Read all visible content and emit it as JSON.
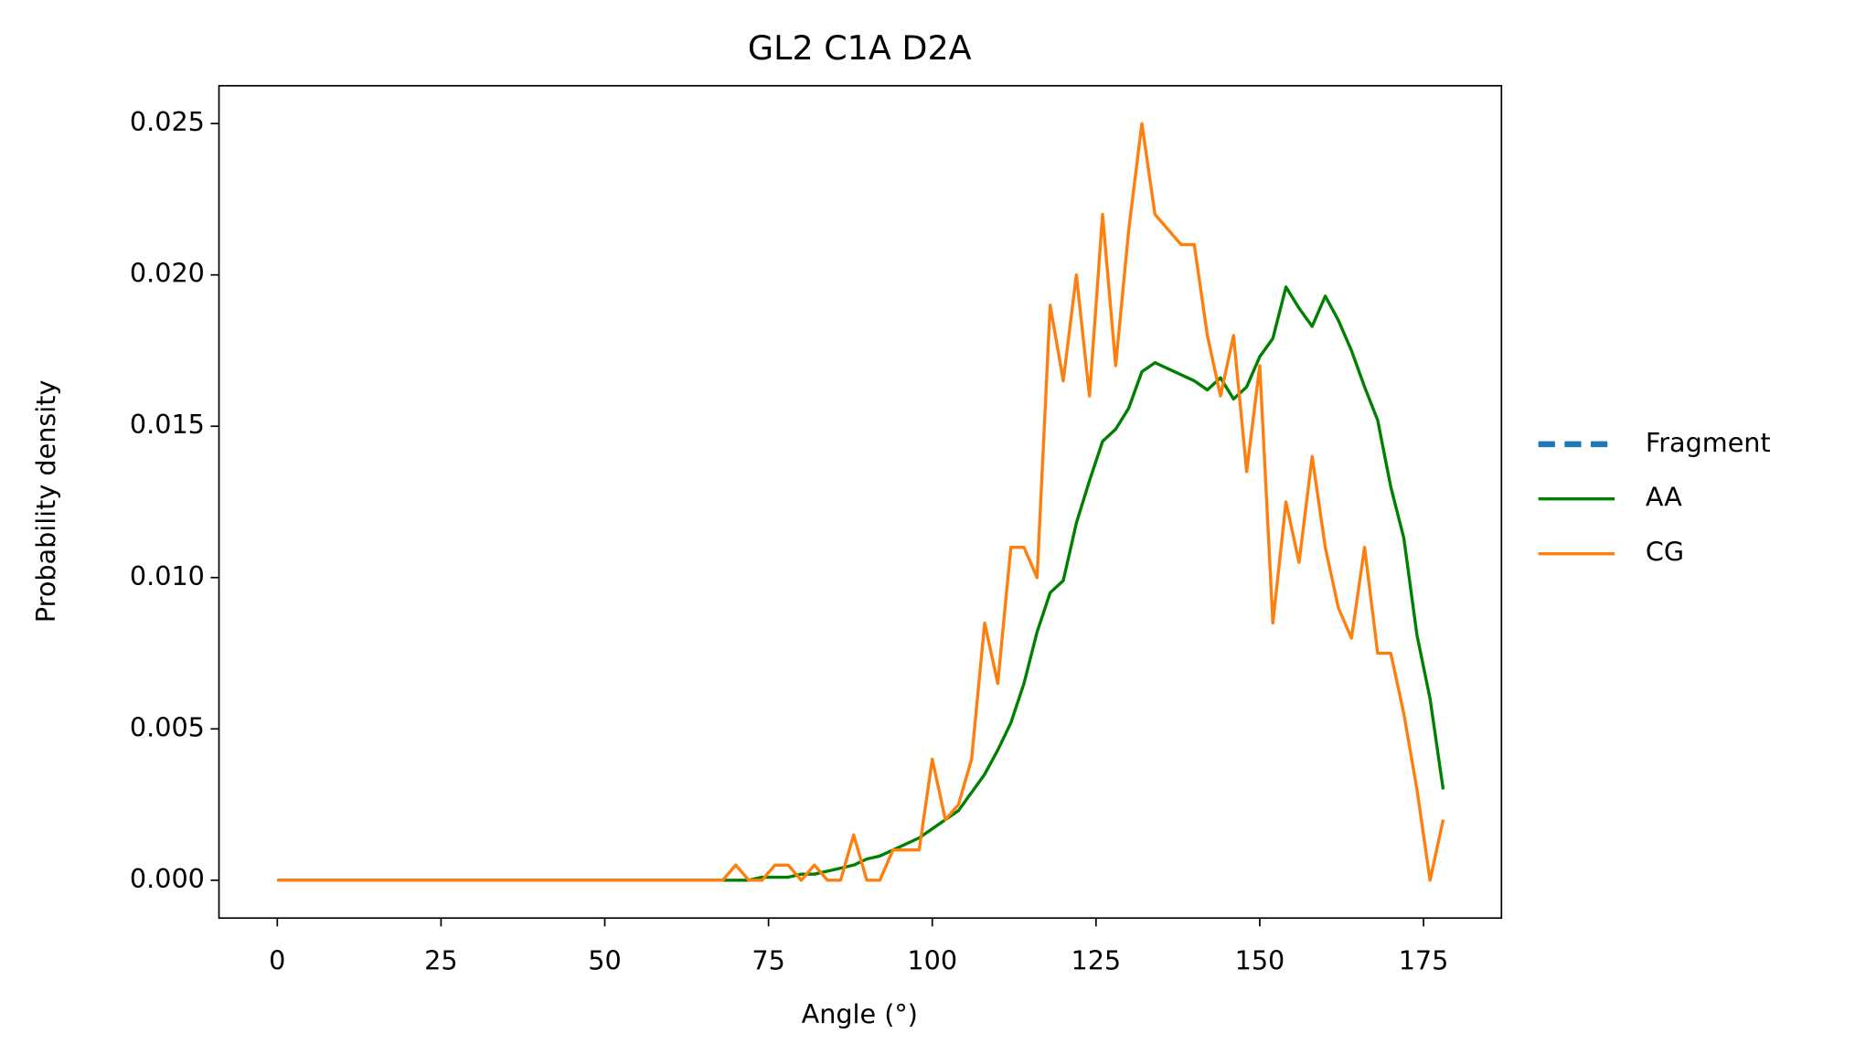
{
  "chart_data": {
    "type": "line",
    "title": "GL2 C1A D2A",
    "xlabel": "Angle (°)",
    "ylabel": "Probability density",
    "x": [
      0,
      2,
      4,
      6,
      8,
      10,
      12,
      14,
      16,
      18,
      20,
      22,
      24,
      26,
      28,
      30,
      32,
      34,
      36,
      38,
      40,
      42,
      44,
      46,
      48,
      50,
      52,
      54,
      56,
      58,
      60,
      62,
      64,
      66,
      68,
      70,
      72,
      74,
      76,
      78,
      80,
      82,
      84,
      86,
      88,
      90,
      92,
      94,
      96,
      98,
      100,
      102,
      104,
      106,
      108,
      110,
      112,
      114,
      116,
      118,
      120,
      122,
      124,
      126,
      128,
      130,
      132,
      134,
      136,
      138,
      140,
      142,
      144,
      146,
      148,
      150,
      152,
      154,
      156,
      158,
      160,
      162,
      164,
      166,
      168,
      170,
      172,
      174,
      176,
      178
    ],
    "series": [
      {
        "name": "Fragment",
        "color": "#1f77b4",
        "dashed": true,
        "values": [
          null,
          null,
          null,
          null,
          null,
          null,
          null,
          null,
          null,
          null,
          null,
          null,
          null,
          null,
          null,
          null,
          null,
          null,
          null,
          null,
          null,
          null,
          null,
          null,
          null,
          null,
          null,
          null,
          null,
          null,
          null,
          null,
          null,
          null,
          null,
          null,
          null,
          null,
          null,
          null,
          null,
          null,
          null,
          null,
          null,
          null,
          null,
          null,
          null,
          null,
          null,
          null,
          null,
          null,
          null,
          null,
          null,
          null,
          null,
          null,
          null,
          null,
          null,
          null,
          null,
          null,
          null,
          null,
          null,
          null,
          null,
          null,
          null,
          null,
          null,
          null,
          null,
          null,
          null,
          null,
          null,
          null,
          null,
          null,
          null,
          null,
          null,
          null,
          null,
          null
        ]
      },
      {
        "name": "AA",
        "color": "#008000",
        "values": [
          0,
          0,
          0,
          0,
          0,
          0,
          0,
          0,
          0,
          0,
          0,
          0,
          0,
          0,
          0,
          0,
          0,
          0,
          0,
          0,
          0,
          0,
          0,
          0,
          0,
          0,
          0,
          0,
          0,
          0,
          0,
          0,
          0,
          0,
          0,
          0,
          0,
          0.0001,
          0.0001,
          0.0001,
          0.0002,
          0.0002,
          0.0003,
          0.0004,
          0.0005,
          0.0007,
          0.0008,
          0.001,
          0.0012,
          0.0014,
          0.0017,
          0.002,
          0.0023,
          0.0029,
          0.0035,
          0.0043,
          0.0052,
          0.0065,
          0.0082,
          0.0095,
          0.0099,
          0.0118,
          0.0132,
          0.0145,
          0.0149,
          0.0156,
          0.0168,
          0.0171,
          0.0169,
          0.0167,
          0.0165,
          0.0162,
          0.0166,
          0.0159,
          0.0163,
          0.0173,
          0.0179,
          0.0196,
          0.0189,
          0.0183,
          0.0193,
          0.0185,
          0.0175,
          0.0163,
          0.0152,
          0.013,
          0.0113,
          0.0081,
          0.006,
          0.003
        ]
      },
      {
        "name": "CG",
        "color": "#ff7f0e",
        "values": [
          0,
          0,
          0,
          0,
          0,
          0,
          0,
          0,
          0,
          0,
          0,
          0,
          0,
          0,
          0,
          0,
          0,
          0,
          0,
          0,
          0,
          0,
          0,
          0,
          0,
          0,
          0,
          0,
          0,
          0,
          0,
          0,
          0,
          0,
          0,
          0.0005,
          0,
          0,
          0.0005,
          0.0005,
          0,
          0.0005,
          0,
          0,
          0.0015,
          0,
          0,
          0.001,
          0.001,
          0.001,
          0.004,
          0.002,
          0.0025,
          0.004,
          0.0085,
          0.0065,
          0.011,
          0.011,
          0.01,
          0.019,
          0.0165,
          0.02,
          0.016,
          0.022,
          0.017,
          0.0215,
          0.025,
          0.022,
          0.0215,
          0.021,
          0.021,
          0.018,
          0.016,
          0.018,
          0.0135,
          0.017,
          0.0085,
          0.0125,
          0.0105,
          0.014,
          0.011,
          0.009,
          0.008,
          0.011,
          0.0075,
          0.0075,
          0.0055,
          0.003,
          0,
          0.002
        ]
      }
    ],
    "xlim": [
      -8.9,
      186.9
    ],
    "xticks": [
      0,
      25,
      50,
      75,
      100,
      125,
      150,
      175
    ],
    "ylim": [
      -0.00125,
      0.02625
    ],
    "yticks": [
      {
        "value": 0,
        "label": "0.000"
      },
      {
        "value": 0.005,
        "label": "0.005"
      },
      {
        "value": 0.01,
        "label": "0.010"
      },
      {
        "value": 0.015,
        "label": "0.015"
      },
      {
        "value": 0.02,
        "label": "0.020"
      },
      {
        "value": 0.025,
        "label": "0.025"
      }
    ],
    "legend": "right",
    "grid": false
  }
}
